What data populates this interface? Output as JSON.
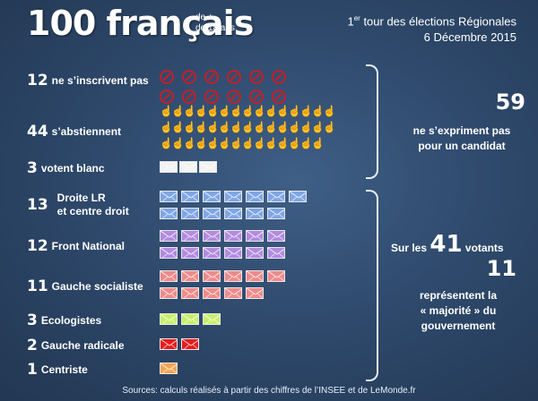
{
  "title": {
    "count": "100 français",
    "qualifier_line1": "de +",
    "qualifier_line2": "de 18 ans"
  },
  "header": {
    "line1_prefix": "1",
    "line1_sup": "er",
    "line1_suffix": " tour des élections Régionales",
    "line2": "6 Décembre 2015"
  },
  "rows": [
    {
      "number": "12",
      "label": "ne s’inscrivent pas",
      "icon": "prohibited-icon",
      "count": 12
    },
    {
      "number": "44",
      "label": "s’abstiennent",
      "icon": "hand-icon",
      "count": 44
    },
    {
      "number": "3",
      "label": "votent blanc",
      "icon": "envelope-icon",
      "count": 3,
      "color": "#f2f2f2"
    },
    {
      "number": "13",
      "label_line1": "Droite LR",
      "label_line2": "et centre droit",
      "icon": "envelope-icon",
      "count": 13,
      "color": "#7fa6e6"
    },
    {
      "number": "12",
      "label": "Front National",
      "icon": "envelope-icon",
      "count": 12,
      "color": "#b38be0"
    },
    {
      "number": "11",
      "label": "Gauche socialiste",
      "icon": "envelope-icon",
      "count": 11,
      "color": "#f08a8a"
    },
    {
      "number": "3",
      "label": "Ecologistes",
      "icon": "envelope-icon",
      "count": 3,
      "color": "#c7ef6a"
    },
    {
      "number": "2",
      "label": "Gauche radicale",
      "icon": "envelope-icon",
      "count": 2,
      "color": "#e81b1b"
    },
    {
      "number": "1",
      "label": "Centriste",
      "icon": "envelope-icon",
      "count": 1,
      "color": "#f6a451"
    }
  ],
  "right": {
    "top_number": "59",
    "top_text_line1": "ne s’expriment pas",
    "top_text_line2": "pour un candidat",
    "votants_prefix": "Sur les",
    "votants_number": "41",
    "votants_suffix": "votants",
    "majority_number": "11",
    "majority_line1": "représentent la",
    "majority_line2": "« majorité » du",
    "majority_line3": "gouvernement"
  },
  "source": "Sources: calculs réalisés à partir des chiffres de l’INSEE et de LeMonde.fr",
  "colors": {
    "prohibited": "#c3202a",
    "hand": "#f2c09b",
    "background": "#2f4a6d"
  }
}
